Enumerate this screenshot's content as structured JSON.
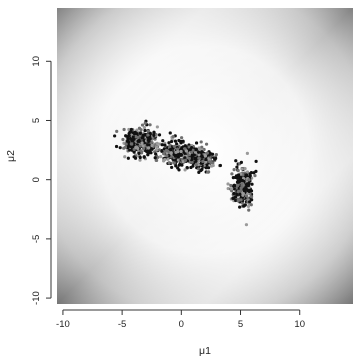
{
  "chart_data": {
    "type": "scatter",
    "title": "",
    "xlabel": "μ1",
    "ylabel": "μ2",
    "xlim": [
      -10.5,
      14.5
    ],
    "ylim": [
      -10.5,
      14.5
    ],
    "x_ticks": [
      -10,
      -5,
      0,
      5,
      10
    ],
    "y_ticks": [
      -10,
      -5,
      0,
      5,
      10
    ],
    "background": "grayscale density surface (dark at corners, light near the diagonal through the clusters)",
    "point_colors": [
      "#111111",
      "#6f6f6f",
      "#9a9a9a"
    ],
    "clusters": [
      {
        "center": [
          -3.3,
          3.2
        ],
        "spread": [
          0.75,
          0.6
        ],
        "count": 320
      },
      {
        "center": [
          -0.2,
          2.2
        ],
        "spread": [
          0.75,
          0.5
        ],
        "count": 260
      },
      {
        "center": [
          1.6,
          1.8
        ],
        "spread": [
          0.7,
          0.45
        ],
        "count": 200
      },
      {
        "center": [
          5.2,
          -0.5
        ],
        "spread": [
          0.45,
          0.85
        ],
        "count": 250
      }
    ],
    "outliers": [
      [
        5.5,
        -3.8
      ],
      [
        4.6,
        1.6
      ],
      [
        6.3,
        0.7
      ],
      [
        3.3,
        1.2
      ]
    ]
  }
}
